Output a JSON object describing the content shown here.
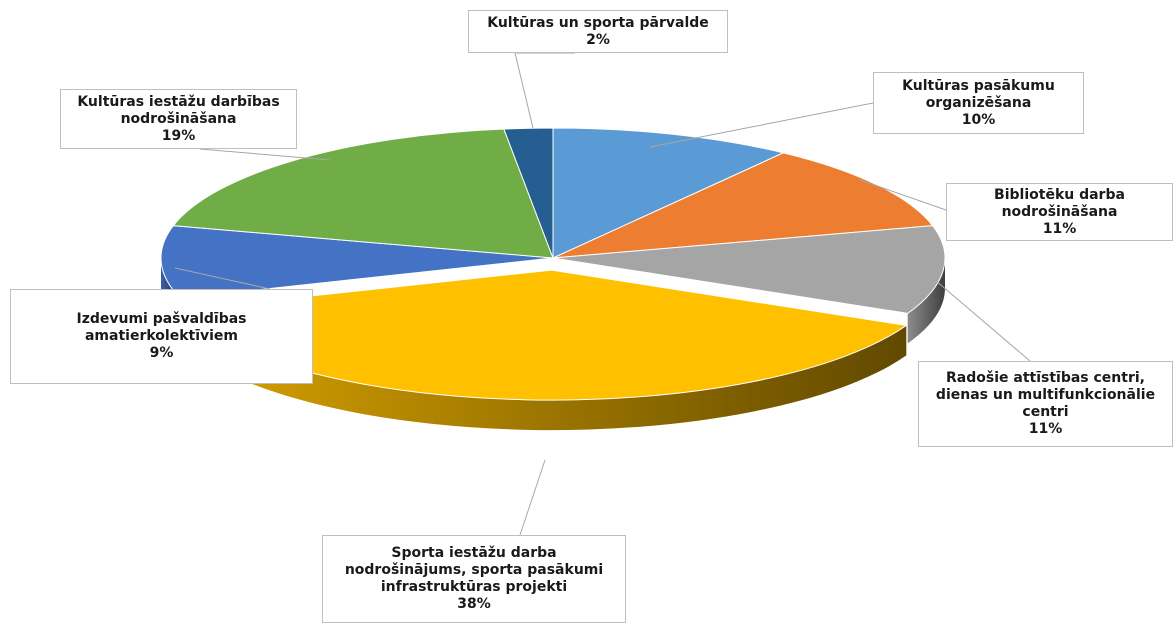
{
  "chart_data": {
    "type": "pie",
    "style": "3d-exploded",
    "slices": [
      {
        "label_lines": [
          "Kultūras pasākumu",
          "organizēšana"
        ],
        "percent_label": "10%",
        "value": 10,
        "color": "#5b9bd5"
      },
      {
        "label_lines": [
          "Bibliotēku darba",
          "nodrošināšana"
        ],
        "percent_label": "11%",
        "value": 11,
        "color": "#ed7d31"
      },
      {
        "label_lines": [
          "Radošie attīstības centri,",
          "dienas un multifunkcionālie",
          "centri"
        ],
        "percent_label": "11%",
        "value": 11,
        "color": "#a5a5a5"
      },
      {
        "label_lines": [
          "Sporta iestāžu darba",
          "nodrošinājums, sporta pasākumi",
          "infrastruktūras projekti"
        ],
        "percent_label": "38%",
        "value": 38,
        "color": "#ffc000",
        "exploded": true
      },
      {
        "label_lines": [
          "Izdevumi pašvaldības",
          "amatierkolektīviem"
        ],
        "percent_label": "9%",
        "value": 9,
        "color": "#4472c4"
      },
      {
        "label_lines": [
          "Kultūras iestāžu darbības",
          "nodrošināšana"
        ],
        "percent_label": "19%",
        "value": 19,
        "color": "#70ad47"
      },
      {
        "label_lines": [
          "Kultūras un sporta pārvalde"
        ],
        "percent_label": "2%",
        "value": 2,
        "color": "#255e91"
      }
    ]
  }
}
